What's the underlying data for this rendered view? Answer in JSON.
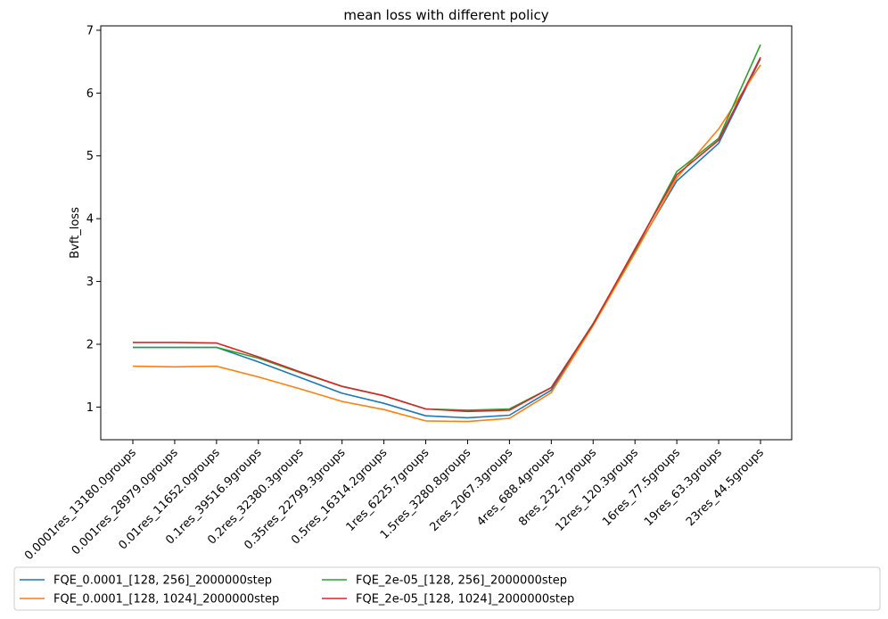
{
  "chart_data": {
    "type": "line",
    "title": "mean loss with different policy",
    "xlabel": "",
    "ylabel": "Bvft_loss",
    "categories": [
      "0.0001res_13180.0groups",
      "0.001res_28979.0groups",
      "0.01res_11652.0groups",
      "0.1res_39516.9groups",
      "0.2res_32380.3groups",
      "0.35res_22799.3groups",
      "0.5res_16314.2groups",
      "1res_6225.7groups",
      "1.5res_3280.8groups",
      "2res_2067.3groups",
      "4res_688.4groups",
      "8res_232.7groups",
      "12res_120.3groups",
      "16res_77.5groups",
      "19res_63.3groups",
      "23res_44.5groups"
    ],
    "ylim": [
      0.48,
      7.07
    ],
    "yticks": [
      1,
      2,
      3,
      4,
      5,
      6,
      7
    ],
    "grid": false,
    "legend_position": "bottom",
    "series": [
      {
        "name": "FQE_0.0001_[128, 256]_2000000step",
        "color": "#1f77b4",
        "values": [
          1.95,
          1.95,
          1.95,
          1.72,
          1.47,
          1.22,
          1.06,
          0.86,
          0.83,
          0.87,
          1.27,
          2.32,
          3.48,
          4.6,
          5.2,
          6.55
        ]
      },
      {
        "name": "FQE_0.0001_[128, 1024]_2000000step",
        "color": "#ff7f0e",
        "values": [
          1.65,
          1.64,
          1.65,
          1.48,
          1.29,
          1.09,
          0.96,
          0.78,
          0.77,
          0.82,
          1.23,
          2.3,
          3.45,
          4.65,
          5.43,
          6.45
        ]
      },
      {
        "name": "FQE_2e-05_[128, 256]_2000000step",
        "color": "#2ca02c",
        "values": [
          1.95,
          1.95,
          1.95,
          1.78,
          1.55,
          1.33,
          1.18,
          0.97,
          0.95,
          0.97,
          1.31,
          2.33,
          3.5,
          4.75,
          5.28,
          6.77
        ]
      },
      {
        "name": "FQE_2e-05_[128, 1024]_2000000step",
        "color": "#d62728",
        "values": [
          2.03,
          2.03,
          2.02,
          1.8,
          1.56,
          1.33,
          1.18,
          0.97,
          0.93,
          0.95,
          1.31,
          2.32,
          3.52,
          4.7,
          5.25,
          6.57
        ]
      }
    ]
  }
}
